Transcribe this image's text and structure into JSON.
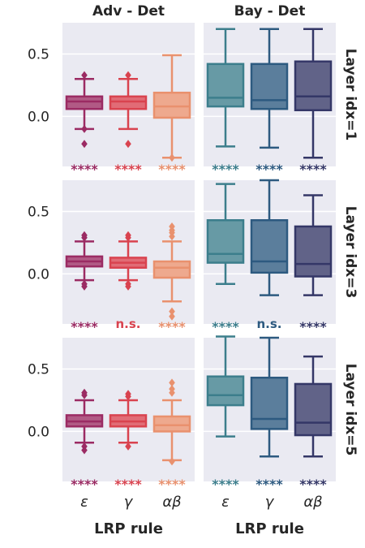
{
  "chart_data": {
    "type": "boxplot",
    "xlabel": "LRP rule",
    "categories": [
      "ε",
      "γ",
      "αβ"
    ],
    "columns": [
      "Adv - Det",
      "Bay - Det"
    ],
    "rows": [
      "Layer idx=1",
      "Layer idx=3",
      "Layer idx=5"
    ],
    "ylim": [
      -0.4,
      0.75
    ],
    "yticks": [
      0.0,
      0.5
    ],
    "grid": true,
    "colors": {
      "adv": [
        "#9b2b63",
        "#d9434f",
        "#e9916e"
      ],
      "bay": [
        "#3c7e8c",
        "#2d5a80",
        "#343767"
      ],
      "panel_bg": "#eaeaf2"
    },
    "panels": [
      {
        "column": "Adv - Det",
        "row": "Layer idx=1",
        "boxes": [
          {
            "category": "ε",
            "whislo": -0.1,
            "q1": 0.06,
            "med": 0.12,
            "q3": 0.16,
            "whishi": 0.3,
            "fliers": [
              0.33,
              -0.1,
              -0.22
            ],
            "sig": "****"
          },
          {
            "category": "γ",
            "whislo": -0.1,
            "q1": 0.06,
            "med": 0.12,
            "q3": 0.16,
            "whishi": 0.3,
            "fliers": [
              0.33,
              -0.22
            ],
            "sig": "****"
          },
          {
            "category": "αβ",
            "whislo": -0.33,
            "q1": -0.01,
            "med": 0.08,
            "q3": 0.19,
            "whishi": 0.49,
            "fliers": [
              -0.33
            ],
            "sig": "****"
          }
        ]
      },
      {
        "column": "Bay - Det",
        "row": "Layer idx=1",
        "boxes": [
          {
            "category": "ε",
            "whislo": -0.24,
            "q1": 0.08,
            "med": 0.15,
            "q3": 0.42,
            "whishi": 0.7,
            "fliers": [],
            "sig": "****"
          },
          {
            "category": "γ",
            "whislo": -0.25,
            "q1": 0.06,
            "med": 0.13,
            "q3": 0.42,
            "whishi": 0.7,
            "fliers": [],
            "sig": "****"
          },
          {
            "category": "αβ",
            "whislo": -0.33,
            "q1": 0.05,
            "med": 0.16,
            "q3": 0.44,
            "whishi": 0.7,
            "fliers": [],
            "sig": "****"
          }
        ]
      },
      {
        "column": "Adv - Det",
        "row": "Layer idx=3",
        "boxes": [
          {
            "category": "ε",
            "whislo": -0.05,
            "q1": 0.06,
            "med": 0.1,
            "q3": 0.14,
            "whishi": 0.26,
            "fliers": [
              0.29,
              0.31,
              -0.08,
              -0.1
            ],
            "sig": "****"
          },
          {
            "category": "γ",
            "whislo": -0.05,
            "q1": 0.05,
            "med": 0.09,
            "q3": 0.13,
            "whishi": 0.26,
            "fliers": [
              0.29,
              0.31,
              -0.08,
              -0.1
            ],
            "sig": "n.s."
          },
          {
            "category": "αβ",
            "whislo": -0.22,
            "q1": -0.03,
            "med": 0.05,
            "q3": 0.1,
            "whishi": 0.26,
            "fliers": [
              0.3,
              0.33,
              0.35,
              0.38,
              -0.3,
              -0.34
            ],
            "sig": "****"
          }
        ]
      },
      {
        "column": "Bay - Det",
        "row": "Layer idx=3",
        "boxes": [
          {
            "category": "ε",
            "whislo": -0.08,
            "q1": 0.09,
            "med": 0.16,
            "q3": 0.43,
            "whishi": 0.72,
            "fliers": [],
            "sig": "****"
          },
          {
            "category": "γ",
            "whislo": -0.17,
            "q1": 0.01,
            "med": 0.1,
            "q3": 0.43,
            "whishi": 0.75,
            "fliers": [],
            "sig": "n.s."
          },
          {
            "category": "αβ",
            "whislo": -0.17,
            "q1": -0.02,
            "med": 0.08,
            "q3": 0.38,
            "whishi": 0.63,
            "fliers": [],
            "sig": "****"
          }
        ]
      },
      {
        "column": "Adv - Det",
        "row": "Layer idx=5",
        "boxes": [
          {
            "category": "ε",
            "whislo": -0.09,
            "q1": 0.04,
            "med": 0.08,
            "q3": 0.13,
            "whishi": 0.25,
            "fliers": [
              0.29,
              0.31,
              -0.12,
              -0.15
            ],
            "sig": "****"
          },
          {
            "category": "γ",
            "whislo": -0.09,
            "q1": 0.04,
            "med": 0.08,
            "q3": 0.13,
            "whishi": 0.25,
            "fliers": [
              0.28,
              0.3,
              -0.12
            ],
            "sig": "****"
          },
          {
            "category": "αβ",
            "whislo": -0.23,
            "q1": 0.0,
            "med": 0.05,
            "q3": 0.12,
            "whishi": 0.25,
            "fliers": [
              0.31,
              0.34,
              0.39,
              -0.24
            ],
            "sig": "****"
          }
        ]
      },
      {
        "column": "Bay - Det",
        "row": "Layer idx=5",
        "boxes": [
          {
            "category": "ε",
            "whislo": -0.04,
            "q1": 0.21,
            "med": 0.29,
            "q3": 0.44,
            "whishi": 0.76,
            "fliers": [],
            "sig": "****"
          },
          {
            "category": "γ",
            "whislo": -0.2,
            "q1": 0.02,
            "med": 0.1,
            "q3": 0.43,
            "whishi": 0.75,
            "fliers": [],
            "sig": "****"
          },
          {
            "category": "αβ",
            "whislo": -0.2,
            "q1": -0.03,
            "med": 0.07,
            "q3": 0.38,
            "whishi": 0.6,
            "fliers": [],
            "sig": "****"
          }
        ]
      }
    ]
  }
}
